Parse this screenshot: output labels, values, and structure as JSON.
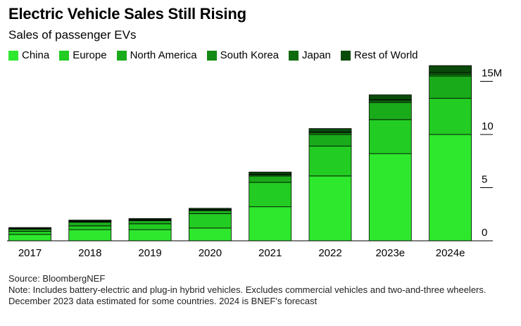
{
  "header": {
    "title": "Electric Vehicle Sales Still Rising",
    "subtitle": "Sales of passenger EVs"
  },
  "footer": {
    "source": "Source: BloombergNEF",
    "note": "Note: Includes battery-electric and plug-in hybrid vehicles. Excludes commercial vehicles and two-and-three wheelers. December 2023 data estimated for some countries. 2024 is BNEF's forecast"
  },
  "chart_data": {
    "type": "bar",
    "stacked": true,
    "title": "Electric Vehicle Sales Still Rising",
    "subtitle": "Sales of passenger EVs",
    "xlabel": "",
    "ylabel": "",
    "categories": [
      "2017",
      "2018",
      "2019",
      "2020",
      "2021",
      "2022",
      "2023e",
      "2024e"
    ],
    "ylim": [
      0,
      17
    ],
    "yticks": [
      0,
      5,
      10,
      15
    ],
    "ytick_labels": [
      "0",
      "5",
      "10",
      "15M"
    ],
    "grid": false,
    "legend_position": "top",
    "series": [
      {
        "name": "China",
        "color": "#2ee82e",
        "values": [
          0.6,
          1.05,
          1.05,
          1.2,
          3.2,
          6.1,
          8.2,
          10.0
        ]
      },
      {
        "name": "Europe",
        "color": "#22cc22",
        "values": [
          0.3,
          0.35,
          0.55,
          1.35,
          2.3,
          2.8,
          3.2,
          3.4
        ]
      },
      {
        "name": "North America",
        "color": "#1aab1a",
        "values": [
          0.2,
          0.35,
          0.3,
          0.3,
          0.6,
          1.1,
          1.6,
          2.1
        ]
      },
      {
        "name": "South Korea",
        "color": "#138a13",
        "values": [
          0.03,
          0.05,
          0.05,
          0.05,
          0.12,
          0.16,
          0.16,
          0.18
        ]
      },
      {
        "name": "Japan",
        "color": "#0e6a0e",
        "values": [
          0.05,
          0.06,
          0.05,
          0.04,
          0.05,
          0.1,
          0.12,
          0.15
        ]
      },
      {
        "name": "Rest of World",
        "color": "#0a4a0a",
        "values": [
          0.07,
          0.09,
          0.1,
          0.12,
          0.2,
          0.3,
          0.45,
          0.65
        ]
      }
    ]
  }
}
